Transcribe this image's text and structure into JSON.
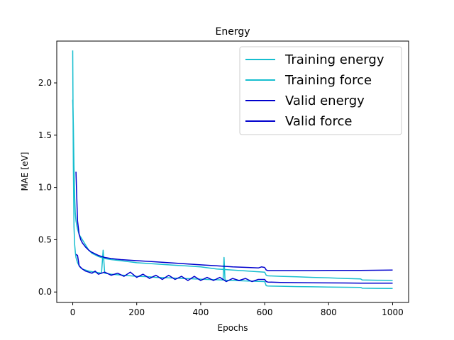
{
  "chart_data": {
    "type": "line",
    "title": "Energy",
    "xlabel": "Epochs",
    "ylabel": "MAE [eV]",
    "xlim": [
      -50,
      1050
    ],
    "ylim": [
      -0.1,
      2.4
    ],
    "xticks": [
      0,
      200,
      400,
      600,
      800,
      1000
    ],
    "yticks": [
      0.0,
      0.5,
      1.0,
      1.5,
      2.0
    ],
    "ytick_labels": [
      "0.0",
      "0.5",
      "1.0",
      "1.5",
      "2.0"
    ],
    "legend_position": "top-right",
    "series": [
      {
        "name": "Training energy",
        "color": "#17becf",
        "x": [
          0,
          2,
          4,
          6,
          8,
          10,
          15,
          20,
          25,
          30,
          40,
          50,
          60,
          70,
          80,
          90,
          95,
          100,
          110,
          120,
          140,
          160,
          180,
          200,
          220,
          240,
          260,
          280,
          300,
          320,
          340,
          360,
          380,
          400,
          420,
          440,
          460,
          470,
          473,
          476,
          480,
          500,
          520,
          540,
          560,
          580,
          600,
          605,
          610,
          650,
          700,
          750,
          800,
          850,
          900,
          905,
          950,
          1000
        ],
        "y": [
          2.31,
          1.2,
          0.62,
          0.45,
          0.38,
          0.33,
          0.28,
          0.25,
          0.23,
          0.22,
          0.21,
          0.2,
          0.195,
          0.19,
          0.185,
          0.18,
          0.4,
          0.18,
          0.175,
          0.17,
          0.165,
          0.16,
          0.155,
          0.15,
          0.148,
          0.145,
          0.14,
          0.138,
          0.135,
          0.133,
          0.13,
          0.128,
          0.125,
          0.123,
          0.12,
          0.118,
          0.116,
          0.115,
          0.33,
          0.115,
          0.113,
          0.11,
          0.108,
          0.106,
          0.104,
          0.102,
          0.1,
          0.06,
          0.057,
          0.055,
          0.052,
          0.05,
          0.048,
          0.046,
          0.044,
          0.036,
          0.035,
          0.034
        ]
      },
      {
        "name": "Training force",
        "color": "#17becf",
        "x": [
          0,
          2,
          4,
          6,
          8,
          10,
          15,
          20,
          30,
          40,
          50,
          60,
          80,
          100,
          120,
          150,
          200,
          250,
          300,
          350,
          400,
          450,
          500,
          550,
          600,
          605,
          610,
          650,
          700,
          750,
          800,
          850,
          900,
          905,
          950,
          1000
        ],
        "y": [
          1.84,
          1.6,
          1.2,
          0.9,
          0.75,
          0.68,
          0.6,
          0.55,
          0.5,
          0.45,
          0.4,
          0.37,
          0.34,
          0.32,
          0.31,
          0.3,
          0.28,
          0.27,
          0.26,
          0.25,
          0.24,
          0.22,
          0.21,
          0.2,
          0.19,
          0.16,
          0.155,
          0.15,
          0.145,
          0.14,
          0.135,
          0.13,
          0.125,
          0.115,
          0.113,
          0.112
        ]
      },
      {
        "name": "Valid energy",
        "color": "#0000cd",
        "x": [
          10,
          15,
          20,
          30,
          40,
          50,
          60,
          70,
          80,
          100,
          120,
          140,
          160,
          180,
          200,
          220,
          240,
          260,
          280,
          300,
          320,
          340,
          360,
          380,
          400,
          420,
          440,
          460,
          480,
          500,
          520,
          540,
          560,
          580,
          600,
          605,
          610,
          650,
          700,
          750,
          800,
          850,
          900,
          950,
          1000
        ],
        "y": [
          0.36,
          0.35,
          0.25,
          0.22,
          0.2,
          0.19,
          0.18,
          0.2,
          0.17,
          0.19,
          0.16,
          0.18,
          0.15,
          0.19,
          0.14,
          0.17,
          0.13,
          0.16,
          0.12,
          0.16,
          0.12,
          0.15,
          0.11,
          0.15,
          0.11,
          0.14,
          0.11,
          0.14,
          0.1,
          0.13,
          0.11,
          0.13,
          0.1,
          0.12,
          0.12,
          0.1,
          0.095,
          0.092,
          0.09,
          0.088,
          0.087,
          0.086,
          0.085,
          0.085,
          0.085
        ]
      },
      {
        "name": "Valid force",
        "color": "#0000cd",
        "x": [
          10,
          12,
          15,
          20,
          25,
          30,
          40,
          50,
          60,
          80,
          100,
          120,
          150,
          200,
          250,
          300,
          350,
          400,
          450,
          500,
          550,
          580,
          590,
          600,
          605,
          610,
          650,
          700,
          750,
          800,
          850,
          900,
          950,
          1000
        ],
        "y": [
          1.15,
          0.95,
          0.68,
          0.55,
          0.5,
          0.47,
          0.43,
          0.4,
          0.38,
          0.35,
          0.33,
          0.32,
          0.31,
          0.3,
          0.29,
          0.28,
          0.27,
          0.26,
          0.25,
          0.24,
          0.235,
          0.23,
          0.24,
          0.235,
          0.21,
          0.205,
          0.205,
          0.205,
          0.205,
          0.206,
          0.207,
          0.207,
          0.208,
          0.21
        ]
      }
    ]
  }
}
